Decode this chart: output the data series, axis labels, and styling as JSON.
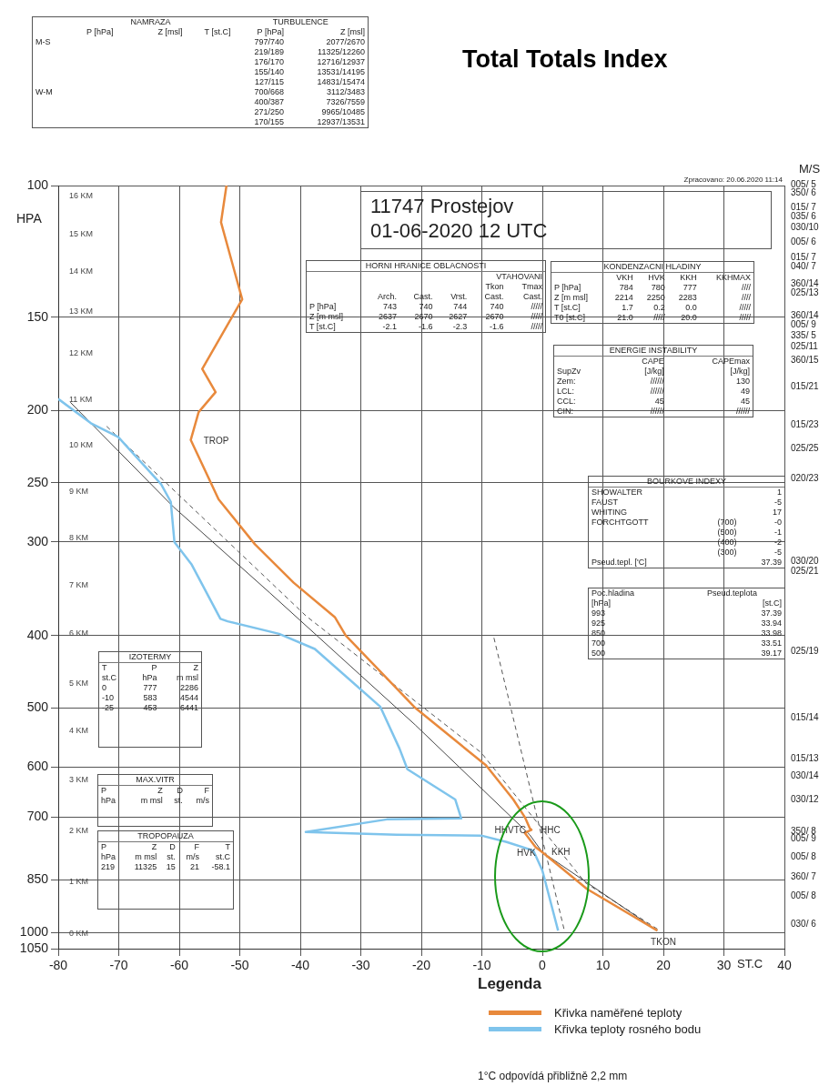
{
  "chart_data": {
    "type": "line",
    "title": "Total Totals Index",
    "subtitle": "11747  Prostejov\n01-06-2020  12 UTC",
    "xlabel": "ST.C",
    "ylabel": "HPA",
    "legend_title": "Legenda",
    "xlim": [
      -80,
      40
    ],
    "xticks": [
      -80,
      -70,
      -60,
      -50,
      -40,
      -30,
      -20,
      -10,
      0,
      10,
      20,
      30,
      40
    ],
    "ylim": [
      1050,
      100
    ],
    "yticks": [
      100,
      150,
      200,
      250,
      300,
      400,
      500,
      600,
      700,
      850,
      1000,
      1050
    ],
    "log": "y",
    "grid": true,
    "legend": "bottom",
    "marker": "none",
    "series": [
      {
        "name": "Křivka naměřené teploty",
        "color": "#e8893c",
        "line_style": "solid",
        "x": [
          -52.2,
          -53.1,
          -49.6,
          -56.2,
          -54.0,
          -56.8,
          -58.1,
          -53.5,
          -47.5,
          -41.1,
          -34.3,
          -32.5,
          -21,
          -9.3,
          -4.8,
          -2.9,
          -2.1,
          -1.8,
          -2.9,
          -1.1,
          0,
          7.4,
          19
        ],
        "values": [
          100,
          112,
          142,
          176,
          189,
          201,
          219,
          263,
          302,
          340,
          378,
          400,
          500,
          597,
          663,
          700,
          724,
          728,
          735,
          768,
          780,
          874,
          993
        ]
      },
      {
        "name": "Křivka teploty rosného bodu",
        "color": "#7fc4ec",
        "line_style": "solid",
        "x": [
          -80,
          -74.6,
          -70.1,
          -63.0,
          -61.4,
          -60.8,
          -58.0,
          -53.2,
          -52.0,
          -43.5,
          -37.6,
          -26.8,
          -23.6,
          -22.3,
          -14.4,
          -13.4,
          -25.7,
          -39.1,
          -24.1,
          -10.1,
          -5.9,
          -1.5,
          0,
          2.6
        ],
        "values": [
          193,
          208,
          217,
          251,
          265,
          300,
          321,
          380,
          383,
          398,
          417,
          498,
          567,
          604,
          663,
          703,
          705,
          733,
          739,
          741,
          756,
          776,
          825,
          993
        ]
      },
      {
        "color": "#444444",
        "line_style": "solid",
        "x": [
          -78,
          -61,
          -45,
          -21,
          -2.1,
          0,
          19
        ],
        "values": [
          195,
          269,
          351,
          527,
          739,
          780,
          993
        ]
      },
      {
        "color": "#555555",
        "line_style": "dashed",
        "x": [
          -72,
          -39,
          -10.1,
          7.1,
          19.4
        ],
        "values": [
          210,
          377,
          574,
          857,
          993
        ]
      },
      {
        "color": "#555555",
        "line_style": "dashed",
        "x": [
          -8,
          3.6
        ],
        "values": [
          403,
          990
        ]
      }
    ],
    "annotations": [
      "Zpracovano: 20.06.2020 11:14",
      "M/S",
      "\t\tNAMRAZA\t\tTURBULENCE\n\tP [hPa]\tZ [msl]\tT [st.C]\tP [hPa]\tZ [msl]\nM-S\t\t\t\t797/740\t2077/2670\n\t\t\t\t219/189\t11325/12260\n\t\t\t\t176/170\t12716/12937\n\t\t\t\t155/140\t13531/14195\n\t\t\t\t127/115\t14831/15474\nW-M\t\t\t\t700/668\t3112/3483\n\t\t\t\t400/387\t7326/7559\n\t\t\t\t271/250\t9965/10485\n\t\t\t\t170/155\t12937/13531",
      "HORNI HRANICE OBLACNOSTI\n\t\t\t\tVTAHOVANI\n\t\t\t\tTkon\tTmax\n\tArch.\tCast.\tVrst.\tCast.\tCast.\nP [hPa]\t743\t740\t744\t740\t/////\nZ [m msl]\t2637\t2670\t2627\t2670\t/////\nT [st.C]\t-2.1\t-1.6\t-2.3\t-1.6\t/////",
      "KONDENZACNI HLADINY\n\tVKH\tHVK\tKKH\tKKHMAX\nP [hPa]\t784\t780\t777\t////\nZ [m msl]\t2214\t2250\t2283\t////\nT [st.C]\t1.7\t0.2\t0.0\t/////\nT0 [st.C]\t21.0\t/////\t20.0\t/////",
      "ENERGIE INSTABILITY\n\tCAPE\tCAPEmax\nSupZv\t[J/kg]\t[J/kg]\nZem:\t//////\t130\nLCL:\t//////\t49\nCCL:\t45\t45\nCIN:\t//////\t//////",
      "BOURKOVE INDEXY\nSHOWALTER\t\t1\nFAUST\t\t-5\nWHITING\t\t17\nFORCHTGOTT\t(700)\t-0\n\t(500)\t-1\n\t(400)\t-2\n\t(300)\t-5\nPseud.tepl. ['C]\t\t37.39",
      "Poc.hladina\tPseud.teplota\n[hPa]\t[st.C]\n993\t37.39\n925\t33.94\n850\t33.98\n700\t33.51\n500\t39.17",
      "IZOTERMY\nT\tP\tZ\nst.C\thPa\tm msl\n0\t777\t2286\n-10\t583\t4544\n-25\t453\t6441",
      "MAX.VITR\nP\tZ\tD\tF\nhPa\tm msl\tst.\tm/s",
      "TROPOPAUZA\nP\tZ\tD\tF\tT\nhPa\tm msl\tst.\tm/s\tst.C\n219\t11325\t15\t21\t-58.1",
      "1°C odpovídá přibližně 2,2 mm",
      "16 KM",
      "15 KM",
      "14 KM",
      "13 KM",
      "12 KM",
      "11 KM",
      "10 KM",
      "9 KM",
      "8 KM",
      "7 KM",
      "6 KM",
      "5 KM",
      "4 KM",
      "3 KM",
      "2 KM",
      "1 KM",
      "0 KM",
      "005/ 5",
      "350/ 6",
      "015/ 7",
      "035/ 6",
      "030/10",
      "005/ 6",
      "015/ 7",
      "040/ 7",
      "360/14",
      "025/13",
      "360/14",
      "005/ 9",
      "335/ 5",
      "025/11",
      "360/15",
      "015/21",
      "015/23",
      "025/25",
      "020/23",
      "030/20",
      "025/21",
      "025/19",
      "015/14",
      "015/13",
      "030/14",
      "030/12",
      "350/ 8",
      "005/ 9",
      "005/ 8",
      "360/ 7",
      "005/ 8",
      "030/ 6",
      {
        "text": "TROP",
        "x": -58.1,
        "y": 219
      },
      {
        "text": "HHVTC",
        "x": -2.1,
        "y": 728
      },
      {
        "text": "HHC",
        "x": -1.8,
        "y": 728
      },
      {
        "text": "HVK",
        "x": -0.5,
        "y": 780
      },
      {
        "text": "KKH",
        "x": 0,
        "y": 777
      },
      {
        "text": "TKON",
        "x": 20,
        "y": 993
      }
    ]
  }
}
